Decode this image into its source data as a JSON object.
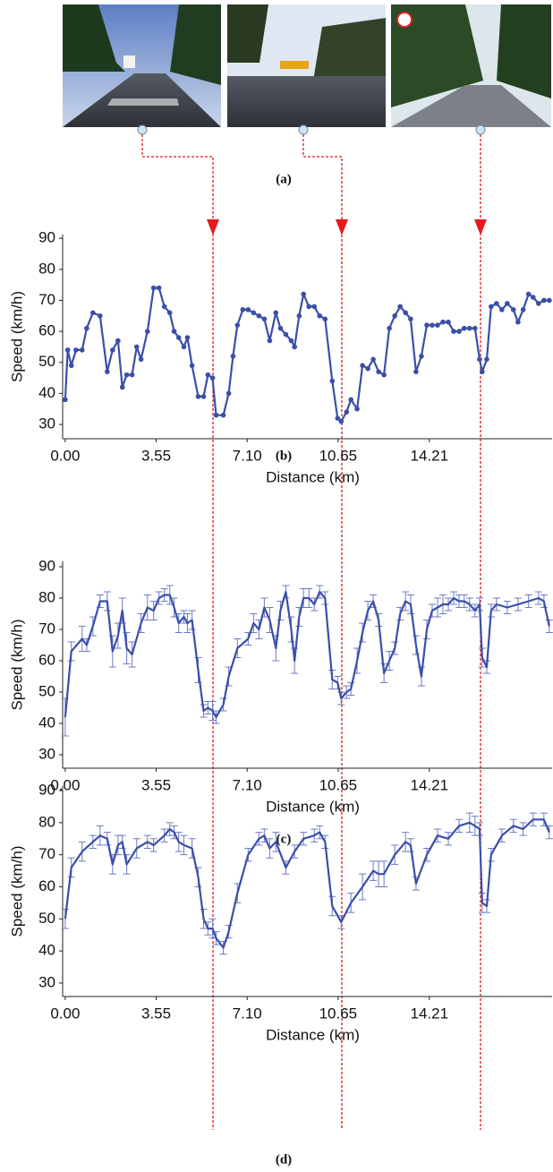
{
  "panel_a_caption": "(a)",
  "chart_data": [
    {
      "type": "line",
      "caption": "(b)",
      "x_label": "Distance (km)",
      "y_label": "Speed (km/h)",
      "markers": true,
      "x": [
        0,
        0.1,
        0.24,
        0.42,
        0.66,
        0.84,
        1.08,
        1.36,
        1.64,
        1.85,
        2.06,
        2.23,
        2.4,
        2.61,
        2.79,
        2.96,
        3.21,
        3.45,
        3.66,
        3.87,
        4.08,
        4.25,
        4.43,
        4.63,
        4.77,
        4.95,
        5.19,
        5.4,
        5.57,
        5.75,
        5.89,
        6.17,
        6.38,
        6.55,
        6.72,
        6.93,
        7.14,
        7.35,
        7.56,
        7.77,
        7.98,
        8.22,
        8.4,
        8.61,
        8.82,
        8.95,
        9.13,
        9.3,
        9.51,
        9.72,
        9.93,
        10.14,
        10.42,
        10.63,
        10.77,
        10.98,
        11.15,
        11.39,
        11.6,
        11.81,
        12.02,
        12.23,
        12.44,
        12.65,
        12.86,
        13.07,
        13.28,
        13.48,
        13.69,
        13.9,
        14.11,
        14.32,
        14.53,
        14.74,
        14.95,
        15.16,
        15.37,
        15.57,
        15.78,
        15.99,
        16.17,
        16.27,
        16.45,
        16.62,
        16.83,
        17.04,
        17.25,
        17.49,
        17.67,
        17.87,
        18.08,
        18.26,
        18.47,
        18.68,
        18.89
      ],
      "series": [
        {
          "color": "#3a4fa8",
          "values": [
            38,
            54,
            49,
            54,
            54,
            61,
            66,
            65,
            47,
            54,
            57,
            42,
            46,
            46,
            55,
            51,
            60,
            74,
            74,
            68,
            66,
            60,
            58,
            55,
            58,
            49,
            39,
            39,
            46,
            45,
            33,
            33,
            40,
            52,
            62,
            67,
            67,
            66,
            65,
            64,
            57,
            66,
            61,
            59,
            57,
            55,
            65,
            72,
            68,
            68,
            65,
            64,
            44,
            32,
            31,
            34,
            38,
            35,
            49,
            48,
            51,
            47,
            46,
            61,
            65,
            68,
            66,
            64,
            47,
            52,
            62,
            62,
            62,
            63,
            63,
            60,
            60,
            61,
            61,
            61,
            51,
            47,
            51,
            68,
            69,
            67,
            69,
            67,
            63,
            67,
            72,
            71,
            69,
            70,
            70
          ]
        }
      ],
      "xlim": [
        -0.1,
        19.0
      ],
      "ylim": [
        25.4,
        91.2
      ],
      "xticks": [
        {
          "value": 0,
          "label": "0.00"
        },
        3.55,
        {
          "value": 7.1,
          "label": "7.10"
        },
        10.65,
        14.21
      ],
      "yticks": [
        30,
        40,
        50,
        60,
        70,
        80,
        90
      ]
    },
    {
      "type": "line",
      "caption": "(c)",
      "x_label": "Distance (km)",
      "y_label": "Speed (km/h)",
      "markers": false,
      "x": [
        0,
        0.24,
        0.66,
        0.84,
        1.08,
        1.36,
        1.64,
        1.85,
        2.06,
        2.23,
        2.4,
        2.61,
        2.96,
        3.21,
        3.45,
        3.66,
        3.87,
        4.08,
        4.25,
        4.43,
        4.63,
        4.77,
        4.95,
        5.19,
        5.4,
        5.57,
        5.75,
        5.89,
        6.17,
        6.38,
        6.72,
        7.14,
        7.35,
        7.56,
        7.77,
        7.98,
        8.22,
        8.4,
        8.61,
        8.82,
        8.95,
        9.13,
        9.3,
        9.51,
        9.72,
        9.93,
        10.14,
        10.42,
        10.63,
        10.77,
        10.98,
        11.15,
        11.39,
        11.6,
        11.81,
        12.02,
        12.23,
        12.44,
        12.65,
        12.86,
        13.07,
        13.28,
        13.48,
        13.69,
        13.9,
        14.11,
        14.32,
        14.53,
        14.74,
        14.95,
        15.16,
        15.37,
        15.57,
        15.78,
        15.99,
        16.17,
        16.27,
        16.45,
        16.62,
        16.83,
        17.25,
        17.67,
        18.08,
        18.47,
        18.68,
        18.89
      ],
      "series": [
        {
          "color": "#3a4fa8",
          "values": [
            42,
            63,
            67,
            65,
            71,
            79,
            79,
            63,
            68,
            76,
            64,
            62,
            72,
            77,
            76,
            80,
            81,
            81,
            77,
            72,
            74,
            72,
            73,
            57,
            44,
            45,
            44,
            42,
            46,
            55,
            64,
            67,
            72,
            70,
            77,
            73,
            64,
            76,
            82,
            70,
            60,
            74,
            80,
            80,
            78,
            82,
            80,
            54,
            53,
            48,
            50,
            51,
            60,
            69,
            76,
            79,
            73,
            56,
            60,
            64,
            75,
            79,
            78,
            65,
            55,
            70,
            76,
            77,
            78,
            78,
            80,
            79,
            79,
            78,
            76,
            78,
            61,
            58,
            76,
            78,
            77,
            78,
            79,
            80,
            79,
            71
          ],
          "errors": [
            6,
            3,
            4,
            2,
            3,
            2,
            3,
            5,
            4,
            4,
            5,
            4,
            3,
            4,
            3,
            2,
            2,
            3,
            3,
            3,
            2,
            3,
            3,
            4,
            2,
            2,
            3,
            2,
            2,
            3,
            3,
            2,
            3,
            3,
            3,
            4,
            4,
            3,
            2,
            4,
            4,
            3,
            3,
            3,
            2,
            2,
            2,
            3,
            2,
            2,
            2,
            2,
            4,
            3,
            3,
            2,
            2,
            3,
            3,
            2,
            2,
            3,
            3,
            3,
            3,
            3,
            2,
            3,
            3,
            2,
            2,
            2,
            2,
            2,
            2,
            2,
            3,
            2,
            2,
            2,
            2,
            2,
            2,
            2,
            2,
            2
          ]
        }
      ],
      "xlim": [
        -0.1,
        19.0
      ],
      "ylim": [
        25.7,
        91.7
      ],
      "xticks": [
        {
          "value": 0,
          "label": "0.00"
        },
        3.55,
        {
          "value": 7.1,
          "label": "7.10"
        },
        10.65,
        14.21
      ],
      "yticks": [
        30,
        40,
        50,
        60,
        70,
        80,
        90
      ]
    },
    {
      "type": "line",
      "caption": "(d)",
      "x_label": "Distance (km)",
      "y_label": "Speed (km/h)",
      "markers": false,
      "x": [
        0,
        0.24,
        0.66,
        1.08,
        1.36,
        1.64,
        1.85,
        2.06,
        2.23,
        2.4,
        2.79,
        3.21,
        3.45,
        3.87,
        4.08,
        4.25,
        4.43,
        4.63,
        4.95,
        5.19,
        5.4,
        5.57,
        5.75,
        5.89,
        6.17,
        6.38,
        6.72,
        7.14,
        7.56,
        7.77,
        7.98,
        8.22,
        8.61,
        8.95,
        9.3,
        9.72,
        9.93,
        10.14,
        10.42,
        10.77,
        11.15,
        11.6,
        12.02,
        12.23,
        12.44,
        12.86,
        13.28,
        13.48,
        13.69,
        14.11,
        14.53,
        14.95,
        15.37,
        15.78,
        15.99,
        16.17,
        16.27,
        16.45,
        16.62,
        17.04,
        17.49,
        17.87,
        18.26,
        18.68,
        18.89
      ],
      "series": [
        {
          "color": "#3a4fa8",
          "values": [
            50,
            66,
            71,
            74,
            76,
            75,
            67,
            73,
            74,
            67,
            72,
            74,
            73,
            76,
            78,
            77,
            74,
            73,
            72,
            63,
            50,
            47,
            47,
            44,
            41,
            46,
            58,
            70,
            75,
            76,
            72,
            74,
            66,
            71,
            75,
            76,
            77,
            74,
            54,
            49,
            55,
            60,
            65,
            64,
            64,
            70,
            74,
            73,
            61,
            70,
            76,
            75,
            79,
            80,
            79,
            78,
            55,
            54,
            70,
            76,
            79,
            78,
            81,
            81,
            77
          ],
          "errors": [
            3,
            3,
            3,
            2,
            3,
            2,
            3,
            3,
            2,
            3,
            3,
            2,
            2,
            2,
            2,
            2,
            3,
            3,
            3,
            3,
            3,
            2,
            3,
            2,
            2,
            2,
            3,
            2,
            2,
            2,
            3,
            3,
            2,
            2,
            2,
            2,
            2,
            2,
            3,
            2,
            3,
            4,
            3,
            4,
            4,
            3,
            3,
            2,
            2,
            2,
            2,
            2,
            2,
            3,
            3,
            2,
            3,
            2,
            2,
            2,
            2,
            2,
            2,
            2,
            2
          ]
        }
      ],
      "xlim": [
        -0.1,
        19.0
      ],
      "ylim": [
        25.8,
        91.4
      ],
      "xticks": [
        {
          "value": 0,
          "label": "0.00"
        },
        3.55,
        {
          "value": 7.1,
          "label": "7.10"
        },
        10.65,
        14.21
      ],
      "yticks": [
        30,
        40,
        50,
        60,
        70,
        80,
        90
      ]
    }
  ]
}
